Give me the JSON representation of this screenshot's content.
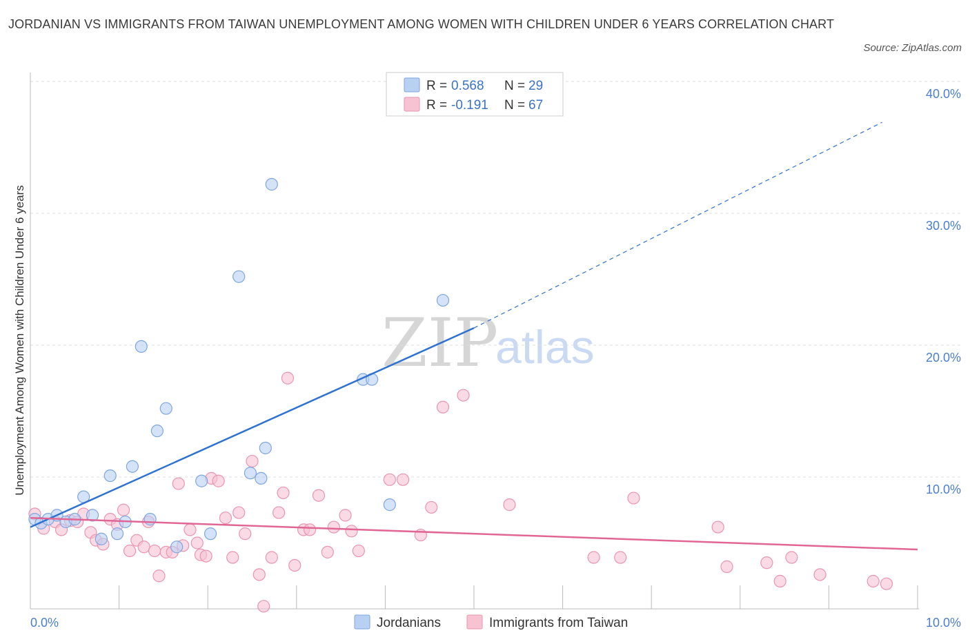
{
  "title": "JORDANIAN VS IMMIGRANTS FROM TAIWAN UNEMPLOYMENT AMONG WOMEN WITH CHILDREN UNDER 6 YEARS CORRELATION CHART",
  "source": "Source: ZipAtlas.com",
  "watermark": {
    "zip": "ZIP",
    "atlas": "atlas"
  },
  "colors": {
    "jordanian_fill": "#b8d1f3",
    "jordanian_stroke": "#7ea6e0",
    "jordanian_line": "#2d72d2",
    "taiwan_fill": "#f7c3d3",
    "taiwan_stroke": "#ea94b0",
    "taiwan_line": "#e06694",
    "grid": "#dddddd",
    "axis_text": "#4a7fd0"
  },
  "legend": {
    "rows": [
      {
        "r_label": "R =",
        "r_value": "0.568",
        "n_label": "N =",
        "n_value": "29"
      },
      {
        "r_label": "R =",
        "r_value": "-0.191",
        "n_label": "N =",
        "n_value": "67"
      }
    ]
  },
  "chart_data": {
    "type": "scatter",
    "title": "JORDANIAN VS IMMIGRANTS FROM TAIWAN UNEMPLOYMENT AMONG WOMEN WITH CHILDREN UNDER 6 YEARS CORRELATION CHART",
    "xlabel": "",
    "ylabel": "Unemployment Among Women with Children Under 6 years",
    "xlim": [
      0,
      10
    ],
    "ylim": [
      0,
      40
    ],
    "x_tick_labels": [
      "0.0%",
      "10.0%"
    ],
    "y_ticks": [
      10,
      20,
      30,
      40
    ],
    "y_tick_labels": [
      "10.0%",
      "20.0%",
      "30.0%",
      "40.0%"
    ],
    "grid": true,
    "legend_position": "top-center",
    "series": [
      {
        "name": "Jordanians",
        "trend": {
          "x0": 0,
          "y0": 6.2,
          "x1": 5.0,
          "y1": 21.3,
          "dashed_to_x": 9.6,
          "dashed_to_y": 36.9
        },
        "points": [
          [
            0.05,
            6.8
          ],
          [
            0.12,
            6.5
          ],
          [
            0.2,
            6.8
          ],
          [
            0.3,
            7.1
          ],
          [
            0.4,
            6.6
          ],
          [
            0.5,
            6.8
          ],
          [
            0.6,
            8.5
          ],
          [
            0.7,
            7.1
          ],
          [
            0.8,
            5.3
          ],
          [
            0.9,
            10.1
          ],
          [
            0.98,
            5.7
          ],
          [
            1.07,
            6.6
          ],
          [
            1.15,
            10.8
          ],
          [
            1.25,
            19.9
          ],
          [
            1.35,
            6.8
          ],
          [
            1.43,
            13.5
          ],
          [
            1.53,
            15.2
          ],
          [
            1.65,
            4.7
          ],
          [
            1.93,
            9.7
          ],
          [
            2.03,
            5.7
          ],
          [
            2.35,
            25.2
          ],
          [
            2.48,
            10.3
          ],
          [
            2.6,
            9.9
          ],
          [
            2.65,
            12.2
          ],
          [
            2.72,
            32.2
          ],
          [
            3.75,
            17.4
          ],
          [
            3.85,
            17.4
          ],
          [
            4.05,
            7.9
          ],
          [
            4.65,
            23.4
          ]
        ]
      },
      {
        "name": "Immigrants from Taiwan",
        "trend": {
          "x0": 0,
          "y0": 6.9,
          "x1": 10,
          "y1": 4.5
        },
        "points": [
          [
            0.05,
            7.2
          ],
          [
            0.15,
            6.1
          ],
          [
            0.28,
            6.6
          ],
          [
            0.35,
            6.0
          ],
          [
            0.45,
            6.7
          ],
          [
            0.53,
            6.6
          ],
          [
            0.6,
            7.2
          ],
          [
            0.68,
            5.8
          ],
          [
            0.74,
            5.2
          ],
          [
            0.82,
            4.9
          ],
          [
            0.9,
            6.8
          ],
          [
            0.98,
            6.4
          ],
          [
            1.05,
            7.5
          ],
          [
            1.12,
            4.4
          ],
          [
            1.2,
            5.2
          ],
          [
            1.28,
            4.7
          ],
          [
            1.33,
            6.6
          ],
          [
            1.4,
            4.4
          ],
          [
            1.45,
            2.5
          ],
          [
            1.53,
            4.3
          ],
          [
            1.6,
            4.3
          ],
          [
            1.67,
            9.5
          ],
          [
            1.72,
            4.8
          ],
          [
            1.8,
            6.0
          ],
          [
            1.88,
            5.0
          ],
          [
            1.92,
            4.1
          ],
          [
            1.98,
            4.0
          ],
          [
            2.04,
            9.9
          ],
          [
            2.12,
            9.7
          ],
          [
            2.2,
            6.9
          ],
          [
            2.28,
            3.9
          ],
          [
            2.35,
            7.3
          ],
          [
            2.42,
            5.7
          ],
          [
            2.5,
            11.2
          ],
          [
            2.58,
            2.6
          ],
          [
            2.63,
            0.2
          ],
          [
            2.72,
            3.9
          ],
          [
            2.8,
            7.3
          ],
          [
            2.85,
            8.8
          ],
          [
            2.9,
            17.5
          ],
          [
            2.98,
            3.3
          ],
          [
            3.08,
            6.0
          ],
          [
            3.15,
            6.0
          ],
          [
            3.25,
            8.6
          ],
          [
            3.35,
            4.3
          ],
          [
            3.42,
            6.2
          ],
          [
            3.55,
            7.1
          ],
          [
            3.62,
            5.9
          ],
          [
            3.7,
            4.4
          ],
          [
            4.05,
            9.8
          ],
          [
            4.2,
            9.8
          ],
          [
            4.4,
            5.6
          ],
          [
            4.52,
            7.7
          ],
          [
            4.65,
            15.3
          ],
          [
            4.88,
            16.2
          ],
          [
            5.4,
            7.9
          ],
          [
            6.35,
            3.9
          ],
          [
            6.65,
            3.9
          ],
          [
            6.8,
            8.4
          ],
          [
            7.75,
            6.2
          ],
          [
            7.85,
            3.2
          ],
          [
            8.3,
            3.5
          ],
          [
            8.45,
            2.1
          ],
          [
            8.58,
            3.9
          ],
          [
            8.9,
            2.6
          ],
          [
            9.5,
            2.1
          ],
          [
            9.65,
            1.9
          ]
        ]
      }
    ]
  }
}
